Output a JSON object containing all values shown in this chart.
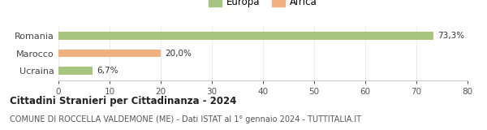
{
  "categories": [
    "Romania",
    "Marocco",
    "Ucraina"
  ],
  "values": [
    73.3,
    20.0,
    6.7
  ],
  "labels": [
    "73,3%",
    "20,0%",
    "6,7%"
  ],
  "colors": [
    "#a8c580",
    "#f0b080",
    "#a8c580"
  ],
  "legend": [
    {
      "label": "Europa",
      "color": "#a8c580"
    },
    {
      "label": "Africa",
      "color": "#f0b080"
    }
  ],
  "xlim": [
    0,
    80
  ],
  "xticks": [
    0,
    10,
    20,
    30,
    40,
    50,
    60,
    70,
    80
  ],
  "title1": "Cittadini Stranieri per Cittadinanza - 2024",
  "title2": "COMUNE DI ROCCELLA VALDEMONE (ME) - Dati ISTAT al 1° gennaio 2024 - TUTTITALIA.IT",
  "background_color": "#ffffff",
  "bar_height": 0.45,
  "figsize": [
    6.0,
    1.6
  ],
  "dpi": 100
}
